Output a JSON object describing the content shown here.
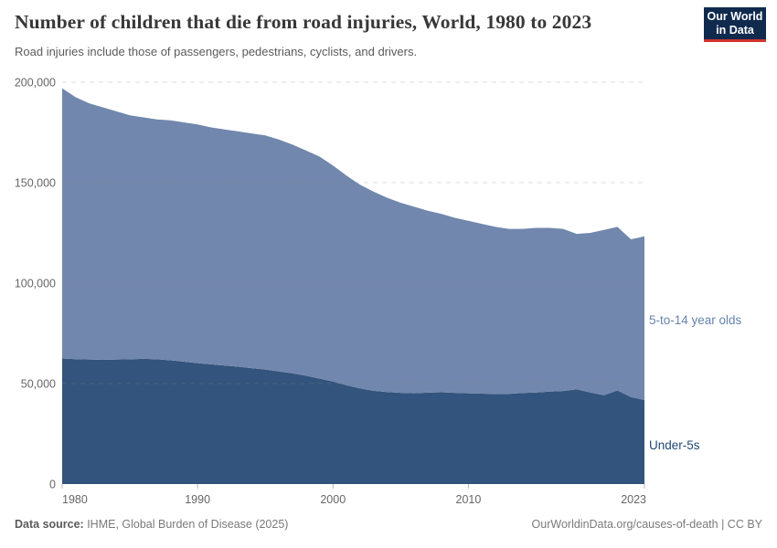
{
  "header": {
    "title": "Number of children that die from road injuries, World, 1980 to 2023",
    "subtitle": "Road injuries include those of passengers, pedestrians, cyclists, and drivers.",
    "logo_line1": "Our World",
    "logo_line2": "in Data"
  },
  "series_labels": {
    "five_to_14": "5-to-14 year olds",
    "under_5": "Under-5s"
  },
  "footer": {
    "datasource_label": "Data source:",
    "datasource_value": " IHME, Global Burden of Disease (2025)",
    "link": "OurWorldinData.org/causes-of-death",
    "separator": " | ",
    "license": "CC BY"
  },
  "colors": {
    "label_5to14": "#6783AE",
    "label_under5": "#1F4874",
    "axis_text": "#666666",
    "grid": "#8a8a8a",
    "tick": "#999999",
    "logo_bg": "#102A4E",
    "logo_red": "#D0342C"
  },
  "chart_data": {
    "type": "area",
    "stacked": true,
    "title": "Number of children that die from road injuries, World, 1980 to 2023",
    "xlabel": "",
    "ylabel": "",
    "grid": "horizontal-dashed",
    "legend_position": "right-edge-labels",
    "ylim": [
      0,
      200000
    ],
    "yticks": [
      0,
      50000,
      100000,
      150000,
      200000
    ],
    "ytick_labels": [
      "0",
      "50,000",
      "100,000",
      "150,000",
      "200,000"
    ],
    "xticks": [
      1980,
      1990,
      2000,
      2010,
      2023
    ],
    "x": [
      1980,
      1981,
      1982,
      1983,
      1984,
      1985,
      1986,
      1987,
      1988,
      1989,
      1990,
      1991,
      1992,
      1993,
      1994,
      1995,
      1996,
      1997,
      1998,
      1999,
      2000,
      2001,
      2002,
      2003,
      2004,
      2005,
      2006,
      2007,
      2008,
      2009,
      2010,
      2011,
      2012,
      2013,
      2014,
      2015,
      2016,
      2017,
      2018,
      2019,
      2020,
      2021,
      2022,
      2023
    ],
    "series": [
      {
        "name": "Under-5s",
        "color": "#33547C",
        "values": [
          62500,
          62200,
          62000,
          61800,
          62000,
          62100,
          62300,
          62100,
          61600,
          60900,
          60200,
          59600,
          59000,
          58400,
          57700,
          57000,
          56100,
          55100,
          53900,
          52500,
          51000,
          49200,
          47600,
          46400,
          45800,
          45400,
          45200,
          45500,
          45700,
          45400,
          45200,
          45000,
          44800,
          44900,
          45300,
          45600,
          46000,
          46300,
          47200,
          45600,
          44200,
          46600,
          43300,
          41800
        ]
      },
      {
        "name": "5-to-14 year olds",
        "color": "#7187AD",
        "values": [
          134500,
          130300,
          127500,
          125700,
          123500,
          121400,
          120200,
          119400,
          119400,
          119100,
          118800,
          117900,
          117500,
          117100,
          116800,
          116500,
          115400,
          113900,
          112100,
          110500,
          107500,
          104300,
          101400,
          99100,
          96700,
          94600,
          92800,
          90500,
          88800,
          87100,
          85800,
          84500,
          83200,
          82100,
          81700,
          81900,
          81500,
          80700,
          77300,
          79400,
          82300,
          81400,
          78500,
          81500
        ]
      }
    ]
  }
}
